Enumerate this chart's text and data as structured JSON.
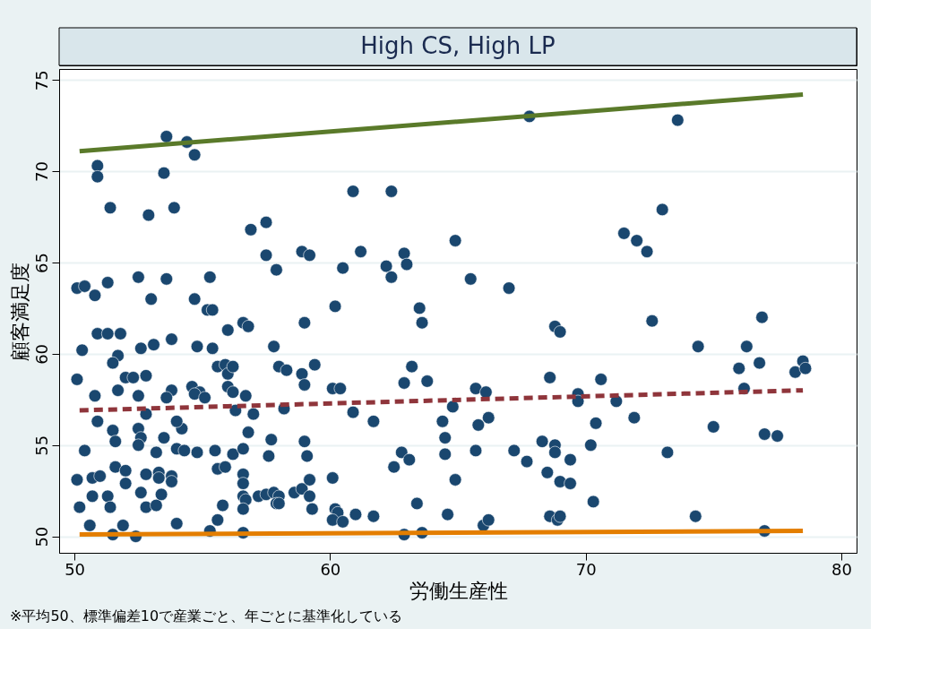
{
  "chart_data": {
    "type": "scatter",
    "title": "High CS, High LP",
    "xlabel": "労働生産性",
    "ylabel": "顧客満足度",
    "annotations": [
      "※平均50、標準偏差10で産業ごと、年ごとに基準化している"
    ],
    "xlim": [
      49.4,
      80.6
    ],
    "ylim": [
      49.1,
      75.6
    ],
    "xticks": [
      50,
      60,
      70,
      80
    ],
    "yticks": [
      50,
      55,
      60,
      65,
      70,
      75
    ],
    "grid": "y",
    "series": [
      {
        "color": "#1a476f",
        "marker": "circle",
        "x": [
          53.6,
          54.4,
          54.7,
          50.9,
          50.9,
          53.5,
          51.4,
          53.9,
          52.9,
          60.9,
          62.4,
          67.8,
          73.6,
          73.0,
          71.5,
          72.0,
          72.4,
          57.5,
          56.9,
          57.5,
          57.9,
          58.9,
          59.2,
          61.2,
          62.2,
          62.4,
          62.9,
          63.0,
          60.5,
          64.9,
          65.5,
          67.0,
          52.5,
          53.6,
          55.3,
          50.1,
          50.4,
          51.3,
          50.8,
          53.0,
          54.7,
          55.2,
          55.4,
          60.2,
          63.5,
          63.6,
          56.0,
          56.6,
          56.8,
          59.0,
          68.8,
          69.0,
          72.6,
          76.9,
          50.9,
          51.3,
          51.8,
          50.3,
          52.6,
          53.1,
          53.8,
          54.8,
          55.4,
          57.8,
          74.4,
          76.3,
          51.7,
          51.5,
          50.1,
          52.0,
          52.3,
          52.8,
          53.8,
          54.6,
          54.9,
          55.6,
          55.9,
          56.0,
          56.2,
          56.0,
          56.2,
          58.0,
          58.3,
          58.9,
          59.0,
          59.4,
          60.1,
          60.4,
          63.2,
          62.9,
          63.8,
          65.7,
          66.1,
          68.6,
          69.7,
          69.7,
          70.6,
          71.2,
          71.9,
          76.0,
          76.2,
          76.8,
          78.2,
          78.5,
          78.6,
          50.8,
          51.7,
          52.5,
          53.6,
          54.7,
          55.1,
          56.7,
          56.3,
          57.0,
          57.7,
          56.8,
          58.2,
          60.9,
          61.7,
          64.4,
          64.8,
          66.2,
          65.8,
          50.9,
          51.5,
          51.6,
          52.5,
          52.6,
          52.8,
          53.5,
          54.2,
          54.0,
          50.4,
          52.5,
          53.2,
          54.0,
          54.3,
          54.8,
          55.5,
          56.2,
          56.6,
          57.6,
          59.0,
          59.1,
          62.8,
          63.1,
          62.5,
          64.5,
          64.5,
          65.7,
          67.2,
          67.7,
          68.3,
          68.5,
          68.8,
          68.8,
          69.4,
          70.2,
          70.4,
          73.2,
          75.0,
          77.0,
          77.5,
          50.1,
          50.7,
          51.0,
          51.6,
          52.0,
          52.8,
          53.3,
          53.3,
          53.8,
          53.8,
          55.6,
          55.9,
          56.6,
          56.6,
          56.6,
          56.7,
          57.2,
          57.5,
          57.8,
          58.0,
          58.6,
          58.9,
          59.2,
          59.2,
          60.1,
          52.0,
          52.6,
          52.8,
          53.2,
          53.4,
          50.2,
          50.7,
          51.3,
          51.4,
          55.8,
          56.6,
          57.9,
          58.0,
          59.3,
          60.2,
          60.3,
          61.7,
          63.4,
          64.6,
          64.9,
          70.3,
          68.6,
          68.9,
          69.0,
          74.3,
          69.0,
          69.4,
          50.6,
          51.9,
          51.5,
          52.4,
          54.0,
          55.3,
          55.6,
          56.6,
          60.1,
          60.5,
          61.0,
          62.9,
          63.6,
          66.0,
          66.2,
          77.0
        ],
        "values": [
          71.9,
          71.6,
          70.9,
          70.3,
          69.7,
          69.9,
          68.0,
          68.0,
          67.6,
          68.9,
          68.9,
          73.0,
          72.8,
          67.9,
          66.6,
          66.2,
          65.6,
          67.2,
          66.8,
          65.4,
          64.6,
          65.6,
          65.4,
          65.6,
          64.8,
          64.2,
          65.5,
          64.9,
          64.7,
          66.2,
          64.1,
          63.6,
          64.2,
          64.1,
          64.2,
          63.6,
          63.7,
          63.9,
          63.2,
          63.0,
          63.0,
          62.4,
          62.4,
          62.6,
          62.5,
          61.7,
          61.3,
          61.7,
          61.5,
          61.7,
          61.5,
          61.2,
          61.8,
          62.0,
          61.1,
          61.1,
          61.1,
          60.2,
          60.3,
          60.5,
          60.8,
          60.4,
          60.3,
          60.4,
          60.4,
          60.4,
          59.9,
          59.5,
          58.6,
          58.7,
          58.7,
          58.8,
          58.0,
          58.2,
          57.9,
          59.3,
          59.4,
          58.9,
          59.3,
          58.2,
          57.9,
          59.3,
          59.1,
          58.9,
          58.3,
          59.4,
          58.1,
          58.1,
          59.3,
          58.4,
          58.5,
          58.1,
          57.9,
          58.7,
          57.8,
          57.4,
          58.6,
          57.4,
          56.5,
          59.2,
          58.1,
          59.5,
          59.0,
          59.6,
          59.2,
          57.7,
          58.0,
          57.7,
          57.6,
          57.8,
          57.6,
          57.7,
          56.9,
          56.7,
          55.3,
          55.7,
          57.0,
          56.8,
          56.3,
          56.3,
          57.1,
          56.5,
          56.1,
          56.3,
          55.8,
          55.2,
          55.9,
          55.4,
          56.7,
          55.4,
          55.9,
          56.3,
          54.7,
          55.0,
          54.6,
          54.8,
          54.7,
          54.6,
          54.7,
          54.5,
          54.8,
          54.4,
          55.2,
          54.4,
          54.6,
          54.2,
          53.8,
          55.4,
          54.5,
          54.7,
          54.7,
          54.1,
          55.2,
          53.5,
          55.0,
          54.6,
          54.2,
          55.0,
          56.2,
          54.6,
          56.0,
          55.6,
          55.5,
          53.1,
          53.2,
          53.3,
          53.8,
          53.6,
          53.4,
          53.5,
          53.2,
          53.3,
          53.0,
          53.7,
          53.8,
          53.4,
          52.9,
          52.2,
          52.0,
          52.2,
          52.3,
          52.4,
          52.2,
          52.4,
          52.6,
          52.2,
          53.1,
          53.2,
          52.9,
          52.4,
          51.6,
          51.7,
          52.3,
          51.6,
          52.2,
          52.2,
          51.6,
          51.7,
          51.5,
          51.8,
          51.8,
          51.5,
          51.5,
          51.3,
          51.1,
          51.8,
          51.2,
          53.1,
          51.9,
          51.1,
          50.9,
          51.1,
          51.1,
          53.0,
          52.9,
          50.6,
          50.6,
          50.1,
          50.0,
          50.7,
          50.3,
          50.9,
          50.2,
          50.9,
          50.8,
          51.2,
          50.1,
          50.2,
          50.6,
          50.9,
          50.3
        ]
      },
      {
        "type": "line",
        "color": "#5a7a2a",
        "line_style": "solid",
        "marker": "none",
        "x": [
          50.2,
          78.5
        ],
        "values": [
          71.1,
          74.2
        ]
      },
      {
        "type": "line",
        "color": "#8f353b",
        "line_style": "dashed",
        "marker": "none",
        "x": [
          50.2,
          78.5
        ],
        "values": [
          56.9,
          58.0
        ]
      },
      {
        "type": "line",
        "color": "#e37e00",
        "line_style": "solid",
        "marker": "none",
        "x": [
          50.2,
          78.5
        ],
        "values": [
          50.1,
          50.3
        ]
      }
    ]
  }
}
